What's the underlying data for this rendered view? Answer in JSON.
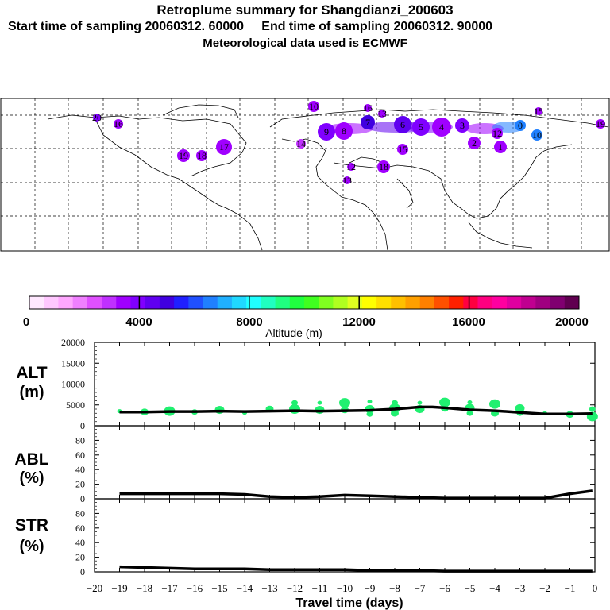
{
  "header": {
    "title": "Retroplume summary for Shangdianzi_200603",
    "subtitle": "Start time of sampling 20060312. 60000     End time of sampling 20060312. 90000",
    "met_line": "Meteorological data used is ECMWF"
  },
  "colorbar": {
    "label": "Altitude (m)",
    "ticks": [
      "0",
      "4000",
      "8000",
      "12000",
      "16000",
      "20000"
    ],
    "colors": [
      "#ffe8ff",
      "#ffc8ff",
      "#ffa8ff",
      "#f080ff",
      "#e050ff",
      "#c030ff",
      "#a000ff",
      "#8000ff",
      "#6000f0",
      "#4000e0",
      "#2020ff",
      "#2050ff",
      "#2080ff",
      "#20b0ff",
      "#20d8ff",
      "#20ffff",
      "#20ffc0",
      "#20ff80",
      "#20ff40",
      "#40ff20",
      "#80ff20",
      "#b0ff20",
      "#e0ff20",
      "#ffff00",
      "#ffe000",
      "#ffc000",
      "#ffa000",
      "#ff8000",
      "#ff5000",
      "#ff2000",
      "#ff0040",
      "#ff0080",
      "#ff00a0",
      "#e000a0",
      "#c00090",
      "#a00080",
      "#800070",
      "#600050"
    ]
  },
  "map": {
    "markers": [
      {
        "label": "10",
        "color": "#a000ff",
        "s": 14
      },
      {
        "label": "16",
        "color": "#a000ff",
        "s": 10
      },
      {
        "label": "13",
        "color": "#a000ff",
        "s": 10
      },
      {
        "label": "15",
        "color": "#a000ff",
        "s": 10
      },
      {
        "label": "9",
        "color": "#8000ff",
        "s": 22
      },
      {
        "label": "8",
        "color": "#a000ff",
        "s": 22
      },
      {
        "label": "7",
        "color": "#4000e0",
        "s": 18
      },
      {
        "label": "6",
        "color": "#6000f0",
        "s": 22
      },
      {
        "label": "5",
        "color": "#8000ff",
        "s": 22
      },
      {
        "label": "4",
        "color": "#a000ff",
        "s": 24
      },
      {
        "label": "3",
        "color": "#8000ff",
        "s": 18
      },
      {
        "label": "2",
        "color": "#a000ff",
        "s": 16
      },
      {
        "label": "1",
        "color": "#a000ff",
        "s": 16
      },
      {
        "label": "0",
        "color": "#2080ff",
        "s": 14
      },
      {
        "label": "12",
        "color": "#a000ff",
        "s": 14
      },
      {
        "label": "10",
        "color": "#2080ff",
        "s": 14
      },
      {
        "label": "15",
        "color": "#a000ff",
        "s": 14
      },
      {
        "label": "14",
        "color": "#c030ff",
        "s": 12
      },
      {
        "label": "18",
        "color": "#a000ff",
        "s": 16
      },
      {
        "label": "17",
        "color": "#a000ff",
        "s": 20
      },
      {
        "label": "19",
        "color": "#a000ff",
        "s": 16
      },
      {
        "label": "20",
        "color": "#8000ff",
        "s": 10
      },
      {
        "label": "16",
        "color": "#a000ff",
        "s": 12
      },
      {
        "label": "18",
        "color": "#a000ff",
        "s": 14
      },
      {
        "label": "19",
        "color": "#a000ff",
        "s": 12
      },
      {
        "label": "12",
        "color": "#a000ff",
        "s": 10
      },
      {
        "label": "13",
        "color": "#a000ff",
        "s": 10
      }
    ]
  },
  "chart_data": [
    {
      "type": "scatter",
      "panel": "ALT",
      "ylabel": "ALT\n(m)",
      "ylabel_lines": [
        "ALT",
        "(m)"
      ],
      "ylim": [
        0,
        20000
      ],
      "yticks": [
        "20000",
        "15000",
        "10000",
        "5000",
        "0"
      ],
      "xlim": [
        -20,
        0
      ],
      "series_line": {
        "name": "median altitude",
        "x": [
          -19,
          -18,
          -17,
          -16,
          -15,
          -14,
          -13,
          -12,
          -11,
          -10,
          -9,
          -8,
          -7,
          -6.5,
          -6,
          -5,
          -4,
          -3,
          -2,
          -1,
          -0.1
        ],
        "y": [
          3300,
          3300,
          3400,
          3400,
          3500,
          3400,
          3500,
          3600,
          3500,
          3600,
          3700,
          4000,
          4500,
          4500,
          4300,
          3800,
          3600,
          3200,
          2800,
          2800,
          2900
        ]
      },
      "points": [
        {
          "x": -19,
          "y": 3500
        },
        {
          "x": -18,
          "y": 3300
        },
        {
          "x": -17,
          "y": 3500
        },
        {
          "x": -16,
          "y": 3300
        },
        {
          "x": -15,
          "y": 3800
        },
        {
          "x": -14,
          "y": 3100
        },
        {
          "x": -13,
          "y": 4000
        },
        {
          "x": -12,
          "y": 4000
        },
        {
          "x": -12,
          "y": 5500
        },
        {
          "x": -11,
          "y": 3800
        },
        {
          "x": -11,
          "y": 5500
        },
        {
          "x": -10,
          "y": 3800
        },
        {
          "x": -10,
          "y": 5500
        },
        {
          "x": -9,
          "y": 2800
        },
        {
          "x": -9,
          "y": 4000
        },
        {
          "x": -9,
          "y": 5800
        },
        {
          "x": -8,
          "y": 3000
        },
        {
          "x": -8,
          "y": 4200
        },
        {
          "x": -8,
          "y": 5500
        },
        {
          "x": -7,
          "y": 4000
        },
        {
          "x": -7,
          "y": 5500
        },
        {
          "x": -6,
          "y": 4200
        },
        {
          "x": -6,
          "y": 5600
        },
        {
          "x": -5,
          "y": 3000
        },
        {
          "x": -5,
          "y": 4300
        },
        {
          "x": -5,
          "y": 5600
        },
        {
          "x": -4,
          "y": 3000
        },
        {
          "x": -4,
          "y": 5200
        },
        {
          "x": -3,
          "y": 3000
        },
        {
          "x": -3,
          "y": 4200
        },
        {
          "x": -2,
          "y": 3000
        },
        {
          "x": -1,
          "y": 2700
        },
        {
          "x": -0.1,
          "y": 2200
        },
        {
          "x": -0.1,
          "y": 4000
        }
      ]
    },
    {
      "type": "line",
      "panel": "ABL",
      "ylabel": "ABL\n(%)",
      "ylabel_lines": [
        "ABL",
        "(%)"
      ],
      "ylim": [
        0,
        100
      ],
      "yticks": [
        "80",
        "60",
        "40",
        "20",
        "0"
      ],
      "xlim": [
        -20,
        0
      ],
      "x": [
        -19,
        -18,
        -17,
        -16,
        -15,
        -14,
        -13,
        -12,
        -11,
        -10,
        -9,
        -8,
        -7,
        -6,
        -5,
        -4,
        -3,
        -2,
        -1,
        -0.1
      ],
      "y": [
        7,
        7,
        7,
        7,
        7,
        6,
        3,
        2,
        3,
        5,
        4,
        3,
        2,
        1,
        1,
        1,
        1,
        1,
        7,
        11
      ]
    },
    {
      "type": "line",
      "panel": "STR",
      "ylabel": "STR\n(%)",
      "ylabel_lines": [
        "STR",
        "(%)"
      ],
      "ylim": [
        0,
        100
      ],
      "yticks": [
        "80",
        "60",
        "40",
        "20",
        "0"
      ],
      "xlim": [
        -20,
        0
      ],
      "xlabel": "Travel time (days)",
      "xticks": [
        "−20",
        "−19",
        "−18",
        "−17",
        "−16",
        "−15",
        "−14",
        "−13",
        "−12",
        "−11",
        "−10",
        "−9",
        "−8",
        "−7",
        "−6",
        "−5",
        "−4",
        "−3",
        "−2",
        "−1",
        "0"
      ],
      "x": [
        -19,
        -18,
        -17,
        -16,
        -15,
        -14,
        -13,
        -12,
        -11,
        -10,
        -9,
        -8,
        -7,
        -6,
        -5,
        -4,
        -3,
        -2,
        -1,
        -0.1
      ],
      "y": [
        7,
        6,
        5,
        4,
        4,
        4,
        3,
        3,
        3,
        3,
        2,
        2,
        2,
        1,
        1,
        1,
        1,
        1,
        1,
        1
      ]
    }
  ]
}
